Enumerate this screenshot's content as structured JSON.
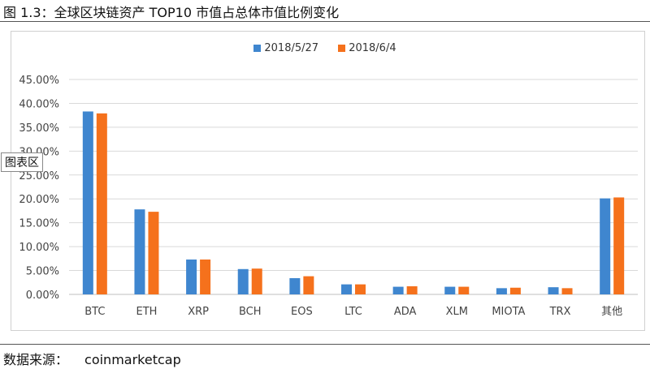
{
  "figure": {
    "title": "图 1.3：全球区块链资产 TOP10 市值占总体市值比例变化",
    "tooltip": "图表区",
    "source_label": "数据来源：",
    "source_value": "coinmarketcap"
  },
  "colors": {
    "series1": "#3f86cf",
    "series2": "#f5711c",
    "grid": "#d9d9d9",
    "axis": "#bfbfbf"
  },
  "chart_data": {
    "type": "bar",
    "title": "",
    "xlabel": "",
    "ylabel": "",
    "categories": [
      "BTC",
      "ETH",
      "XRP",
      "BCH",
      "EOS",
      "LTC",
      "ADA",
      "XLM",
      "MIOTA",
      "TRX",
      "其他"
    ],
    "series": [
      {
        "name": "2018/5/27",
        "values": [
          38.3,
          17.8,
          7.3,
          5.3,
          3.4,
          2.1,
          1.6,
          1.6,
          1.3,
          1.5,
          20.1
        ]
      },
      {
        "name": "2018/6/4",
        "values": [
          37.9,
          17.3,
          7.3,
          5.4,
          3.8,
          2.1,
          1.7,
          1.6,
          1.4,
          1.3,
          20.3
        ]
      }
    ],
    "ylim": [
      0,
      45
    ],
    "yticks": [
      "0.00%",
      "5.00%",
      "10.00%",
      "15.00%",
      "20.00%",
      "25.00%",
      "30.00%",
      "35.00%",
      "40.00%",
      "45.00%"
    ],
    "grid": true,
    "legend_position": "top-center"
  }
}
